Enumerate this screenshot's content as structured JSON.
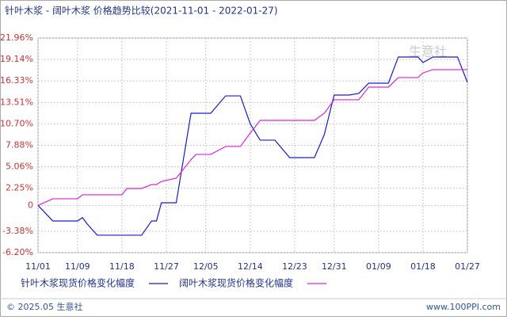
{
  "chart_data": {
    "type": "line",
    "title": "针叶木浆 - 阔叶木浆 价格趋势比较(2021-11-01 - 2022-01-27)",
    "x": [
      "11/01",
      "11/04",
      "11/09",
      "11/10",
      "11/11",
      "11/13",
      "11/18",
      "11/19",
      "11/22",
      "11/24",
      "11/25",
      "11/26",
      "11/29",
      "12/02",
      "12/03",
      "12/06",
      "12/09",
      "12/12",
      "12/14",
      "12/16",
      "12/19",
      "12/22",
      "12/27",
      "12/29",
      "12/31",
      "01/03",
      "01/05",
      "01/07",
      "01/11",
      "01/13",
      "01/17",
      "01/18",
      "01/20",
      "01/25",
      "01/27"
    ],
    "series": [
      {
        "name": "针叶木浆现货价格变化幅度",
        "color": "#1a1acc",
        "values": [
          0,
          -2.04,
          -2.04,
          -1.6,
          -2.46,
          -3.91,
          -3.91,
          -3.91,
          -3.91,
          -2.04,
          -2.04,
          0.35,
          0.35,
          12.09,
          12.09,
          12.09,
          14.37,
          14.37,
          10.7,
          8.56,
          8.56,
          6.27,
          6.27,
          9.28,
          14.48,
          14.48,
          14.69,
          16.04,
          16.04,
          19.47,
          19.47,
          18.74,
          19.47,
          19.47,
          16.14
        ]
      },
      {
        "name": "阔叶木浆现货价格变化幅度",
        "color": "#dd22dd",
        "values": [
          0,
          0.87,
          0.87,
          1.39,
          1.39,
          1.39,
          1.39,
          2.22,
          2.22,
          2.74,
          2.74,
          3.15,
          3.57,
          6.0,
          6.69,
          6.69,
          7.73,
          7.73,
          9.49,
          11.15,
          11.15,
          11.15,
          11.15,
          12.09,
          13.86,
          13.86,
          13.86,
          15.52,
          15.52,
          16.77,
          16.77,
          17.39,
          17.81,
          17.81,
          17.81
        ]
      }
    ],
    "xticks": [
      "11/01",
      "11/09",
      "11/18",
      "11/27",
      "12/05",
      "12/14",
      "12/23",
      "12/31",
      "01/09",
      "01/18",
      "01/27"
    ],
    "ylim": [
      -6.2,
      21.96
    ],
    "yticks": [
      {
        "value": 21.96,
        "label": "21.96%"
      },
      {
        "value": 19.14,
        "label": "19.14%"
      },
      {
        "value": 16.33,
        "label": "16.33%"
      },
      {
        "value": 13.51,
        "label": "13.51%"
      },
      {
        "value": 10.7,
        "label": "10.70%"
      },
      {
        "value": 7.88,
        "label": "7.88%"
      },
      {
        "value": 5.06,
        "label": "5.06%"
      },
      {
        "value": 2.25,
        "label": "2.25%"
      },
      0,
      {
        "value": -3.38,
        "label": "-3.38%"
      },
      {
        "value": -6.2,
        "label": "-6.20%"
      }
    ],
    "grid": true,
    "watermark": "生意社",
    "footer_left": "© 2025.05 生意社",
    "footer_right": "www.100PPI.com"
  }
}
